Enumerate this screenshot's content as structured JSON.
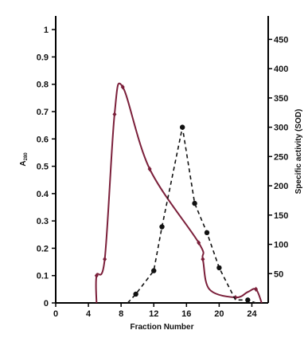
{
  "chart_data": {
    "type": "line",
    "xlabel": "Fraction Number",
    "ylabel": "A280",
    "ylabel_main": "A",
    "ylabel_sub": "280",
    "y2label": "Specific activity (SOD)",
    "xlim": [
      0,
      26
    ],
    "ylim": [
      0,
      1.05
    ],
    "y2lim": [
      0,
      490
    ],
    "xticks": [
      0,
      4,
      8,
      12,
      16,
      20,
      24
    ],
    "yticks": [
      0,
      0.1,
      0.2,
      0.3,
      0.4,
      0.5,
      0.6,
      0.7,
      0.8,
      0.9,
      1
    ],
    "ytick_labels": [
      "0",
      "0.1",
      "0.2",
      "0.3",
      "0.4",
      "0.5",
      "0.6",
      "0.7",
      "0.8",
      "0.9",
      "1"
    ],
    "y2ticks": [
      50,
      100,
      150,
      200,
      250,
      300,
      350,
      400,
      450
    ],
    "series": [
      {
        "axis": "left",
        "style": "solid",
        "color": "#7b1f3a",
        "x": [
          5.0,
          5.0,
          6.0,
          7.2,
          8.2,
          11.5,
          17.5,
          18.0,
          18.8,
          22.0,
          23.5,
          24.5,
          25.2
        ],
        "y": [
          0.0,
          0.1,
          0.16,
          0.69,
          0.79,
          0.49,
          0.22,
          0.16,
          0.05,
          0.02,
          0.04,
          0.05,
          0.0
        ],
        "markers": [
          [
            5.0,
            0.1
          ],
          [
            6.0,
            0.16
          ],
          [
            7.2,
            0.69
          ],
          [
            8.2,
            0.79
          ],
          [
            11.5,
            0.49
          ],
          [
            17.5,
            0.22
          ],
          [
            18.0,
            0.16
          ],
          [
            22.0,
            0.02
          ],
          [
            24.5,
            0.05
          ]
        ]
      },
      {
        "axis": "right",
        "style": "dashed",
        "color": "#111111",
        "x": [
          8.8,
          9.8,
          12.0,
          13.0,
          15.5,
          17.0,
          18.5,
          20.0,
          22.0,
          23.5,
          24.5
        ],
        "y": [
          0,
          15,
          55,
          130,
          300,
          170,
          120,
          60,
          5,
          5,
          0
        ],
        "markers": [
          [
            9.8,
            15
          ],
          [
            12.0,
            55
          ],
          [
            13.0,
            130
          ],
          [
            15.5,
            300
          ],
          [
            17.0,
            170
          ],
          [
            18.5,
            120
          ],
          [
            20.0,
            60
          ],
          [
            23.5,
            5
          ]
        ]
      }
    ]
  }
}
